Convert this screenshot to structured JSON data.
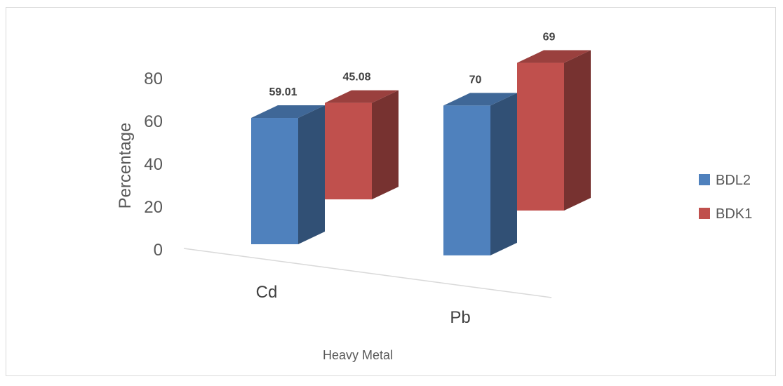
{
  "chart_data": {
    "type": "bar",
    "title": "",
    "xlabel": "Heavy Metal",
    "ylabel": "Percentage",
    "categories": [
      "Cd",
      "Pb"
    ],
    "series": [
      {
        "name": "BDL2",
        "values": [
          59.01,
          70
        ],
        "labels": [
          "59.01",
          "70"
        ],
        "color": "#4f81bd"
      },
      {
        "name": "BDK1",
        "values": [
          45.08,
          69
        ],
        "labels": [
          "45.08",
          "69"
        ],
        "color": "#c0504d"
      }
    ],
    "yticks": [
      "0",
      "20",
      "40",
      "60",
      "80"
    ],
    "ylim": [
      0,
      80
    ],
    "grid": false,
    "legend": "right",
    "style": "3d-column"
  }
}
